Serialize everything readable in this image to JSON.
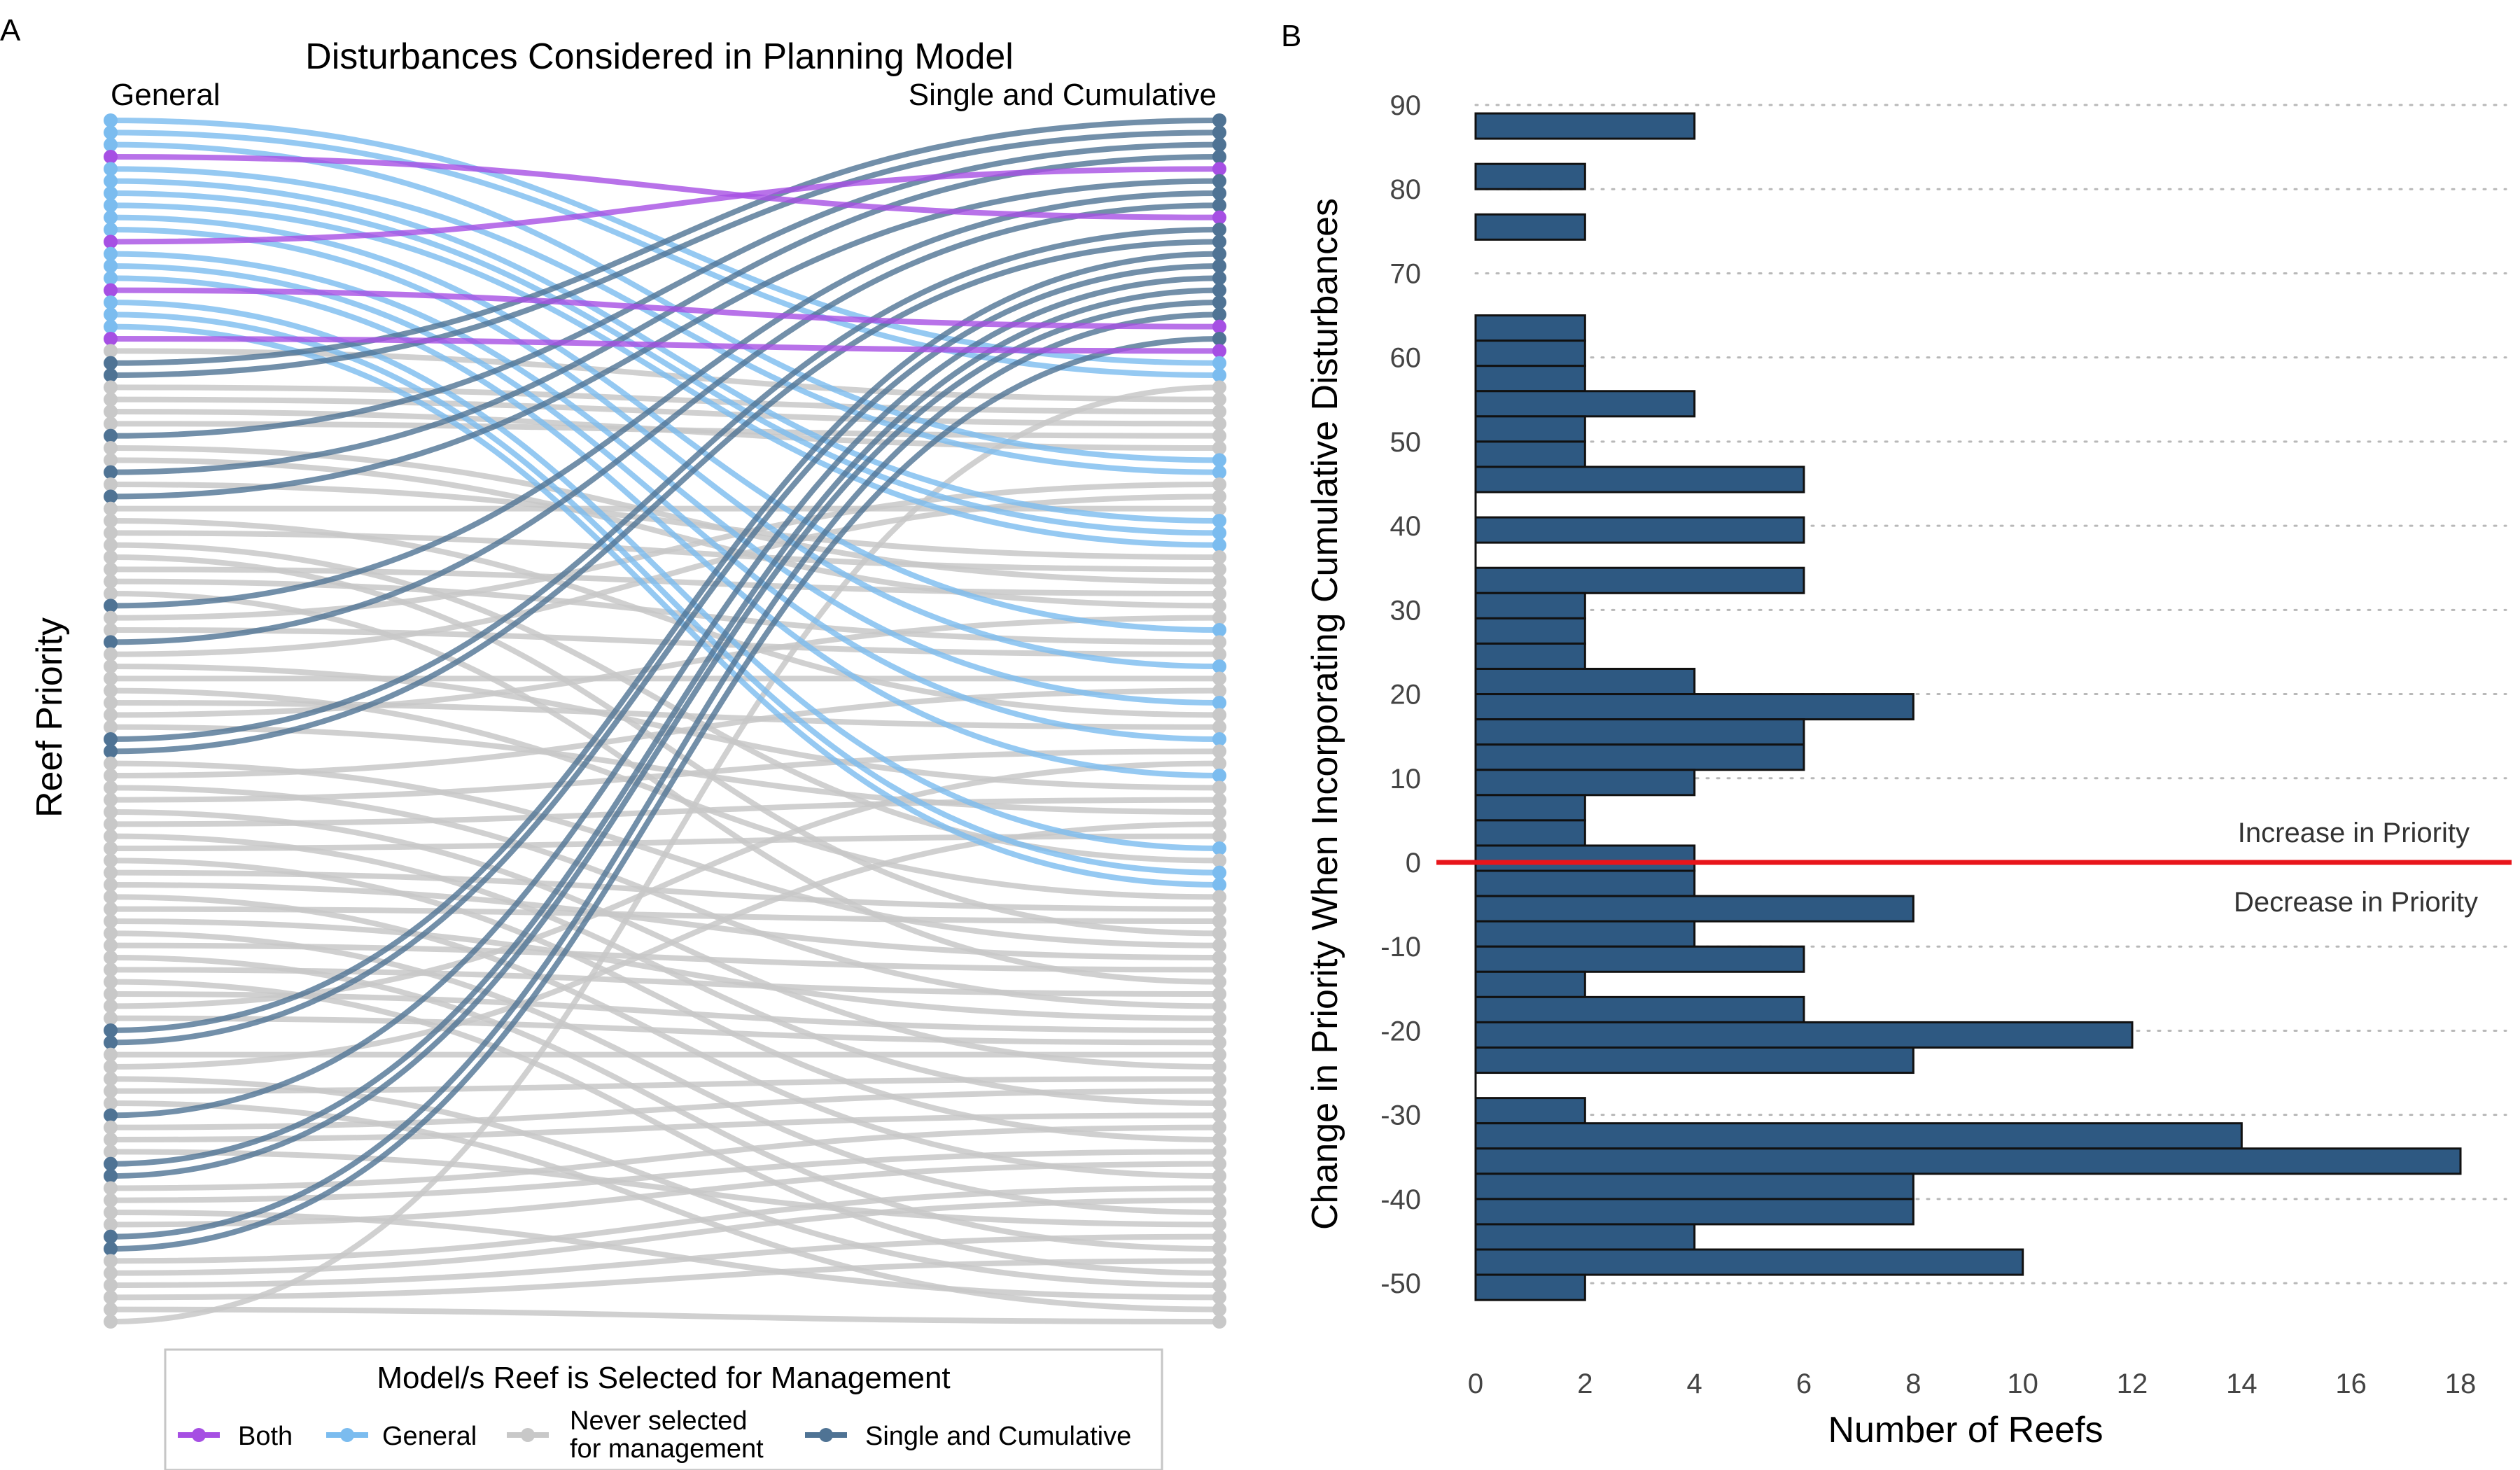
{
  "panel_a": {
    "letter": "A",
    "title": "Disturbances Considered in Planning Model",
    "left_label": "General",
    "right_label": "Single and Cumulative",
    "ylabel": "Reef Priority",
    "legend": {
      "title": "Model/s Reef is Selected for Management",
      "items": [
        {
          "label": "Both",
          "color": "#a64fe3"
        },
        {
          "label": "General",
          "color": "#7bbcef"
        },
        {
          "label": "Never selected\nfor management",
          "color": "#c8c8c8"
        },
        {
          "label": "Single and Cumulative",
          "color": "#4f7394"
        }
      ]
    }
  },
  "panel_b": {
    "letter": "B",
    "increase_label": "Increase in Priority",
    "decrease_label": "Decrease in Priority"
  },
  "chart_data": [
    {
      "type": "slope",
      "panel": "A",
      "title": "Disturbances Considered in Planning Model",
      "ylabel": "Reef Priority",
      "axes": [
        "General",
        "Single and Cumulative"
      ],
      "n_reefs": 100,
      "series": [
        {
          "name": "Both",
          "color": "#a64fe3",
          "links": [
            [
              4,
              9
            ],
            [
              11,
              5
            ],
            [
              15,
              18
            ],
            [
              19,
              20
            ]
          ]
        },
        {
          "name": "General",
          "color": "#7bbcef",
          "links": [
            [
              1,
              21
            ],
            [
              2,
              22
            ],
            [
              3,
              29
            ],
            [
              5,
              30
            ],
            [
              6,
              34
            ],
            [
              7,
              35
            ],
            [
              8,
              36
            ],
            [
              9,
              43
            ],
            [
              10,
              46
            ],
            [
              12,
              49
            ],
            [
              13,
              52
            ],
            [
              14,
              55
            ],
            [
              16,
              61
            ],
            [
              17,
              63
            ],
            [
              18,
              64
            ]
          ]
        },
        {
          "name": "Single and Cumulative",
          "color": "#4f7394",
          "links": [
            [
              21,
              1
            ],
            [
              22,
              2
            ],
            [
              27,
              3
            ],
            [
              30,
              4
            ],
            [
              32,
              6
            ],
            [
              41,
              7
            ],
            [
              44,
              8
            ],
            [
              52,
              10
            ],
            [
              53,
              11
            ],
            [
              76,
              12
            ],
            [
              77,
              13
            ],
            [
              83,
              14
            ],
            [
              87,
              15
            ],
            [
              88,
              16
            ],
            [
              93,
              17
            ],
            [
              94,
              19
            ]
          ]
        },
        {
          "name": "Never selected\nfor management",
          "color": "#c8c8c8",
          "links": [
            [
              20,
              24
            ],
            [
              23,
              25
            ],
            [
              24,
              26
            ],
            [
              25,
              28
            ],
            [
              26,
              27
            ],
            [
              28,
              39
            ],
            [
              29,
              41
            ],
            [
              31,
              37
            ],
            [
              33,
              33
            ],
            [
              34,
              50
            ],
            [
              35,
              38
            ],
            [
              36,
              62
            ],
            [
              37,
              68
            ],
            [
              38,
              40
            ],
            [
              39,
              44
            ],
            [
              40,
              72
            ],
            [
              42,
              31
            ],
            [
              43,
              45
            ],
            [
              45,
              32
            ],
            [
              46,
              56
            ],
            [
              47,
              47
            ],
            [
              48,
              65
            ],
            [
              49,
              51
            ],
            [
              50,
              42
            ],
            [
              51,
              58
            ],
            [
              54,
              69
            ],
            [
              55,
              48
            ],
            [
              56,
              74
            ],
            [
              57,
              53
            ],
            [
              58,
              79
            ],
            [
              59,
              57
            ],
            [
              60,
              82
            ],
            [
              61,
              60
            ],
            [
              62,
              85
            ],
            [
              63,
              66
            ],
            [
              64,
              70
            ],
            [
              65,
              88
            ],
            [
              66,
              67
            ],
            [
              67,
              75
            ],
            [
              68,
              91
            ],
            [
              69,
              71
            ],
            [
              70,
              94
            ],
            [
              71,
              73
            ],
            [
              72,
              96
            ],
            [
              73,
              76
            ],
            [
              74,
              54
            ],
            [
              75,
              77
            ],
            [
              78,
              78
            ],
            [
              79,
              59
            ],
            [
              80,
              97
            ],
            [
              81,
              80
            ],
            [
              82,
              99
            ],
            [
              84,
              81
            ],
            [
              85,
              83
            ],
            [
              86,
              92
            ],
            [
              89,
              84
            ],
            [
              90,
              86
            ],
            [
              91,
              98
            ],
            [
              92,
              87
            ],
            [
              95,
              89
            ],
            [
              96,
              90
            ],
            [
              97,
              93
            ],
            [
              98,
              95
            ],
            [
              99,
              100
            ],
            [
              100,
              23
            ]
          ]
        }
      ],
      "legend": {
        "title": "Model/s Reef is Selected for Management",
        "position": "bottom"
      }
    },
    {
      "type": "bar",
      "panel": "B",
      "orientation": "horizontal",
      "xlabel": "Number of Reefs",
      "ylabel": "Change in Priority When Incorporating Cumulative Disturbances",
      "xlim": [
        0,
        18.5
      ],
      "ylim": [
        -52,
        90
      ],
      "xticks": [
        0,
        2,
        4,
        6,
        8,
        10,
        12,
        14,
        16,
        18
      ],
      "yticks": [
        90,
        80,
        70,
        60,
        50,
        40,
        30,
        20,
        10,
        0,
        -10,
        -20,
        -30,
        -40,
        -50
      ],
      "grid": "horizontal-dotted",
      "bar_color": "#2e5982",
      "reference_line": {
        "y": 0,
        "color": "#e8151b"
      },
      "bars": [
        {
          "y": 87.5,
          "count": 4
        },
        {
          "y": 81.5,
          "count": 2
        },
        {
          "y": 75.5,
          "count": 2
        },
        {
          "y": 63.5,
          "count": 2
        },
        {
          "y": 60.5,
          "count": 2
        },
        {
          "y": 57.5,
          "count": 2
        },
        {
          "y": 54.5,
          "count": 4
        },
        {
          "y": 51.5,
          "count": 2
        },
        {
          "y": 48.5,
          "count": 2
        },
        {
          "y": 45.5,
          "count": 6
        },
        {
          "y": 42.5,
          "count": 0
        },
        {
          "y": 39.5,
          "count": 6
        },
        {
          "y": 36.5,
          "count": 0
        },
        {
          "y": 33.5,
          "count": 6
        },
        {
          "y": 30.5,
          "count": 2
        },
        {
          "y": 27.5,
          "count": 2
        },
        {
          "y": 24.5,
          "count": 2
        },
        {
          "y": 21.5,
          "count": 4
        },
        {
          "y": 18.5,
          "count": 8
        },
        {
          "y": 15.5,
          "count": 6
        },
        {
          "y": 12.5,
          "count": 6
        },
        {
          "y": 9.5,
          "count": 4
        },
        {
          "y": 6.5,
          "count": 2
        },
        {
          "y": 3.5,
          "count": 2
        },
        {
          "y": 0.5,
          "count": 4
        },
        {
          "y": -2.5,
          "count": 4
        },
        {
          "y": -5.5,
          "count": 8
        },
        {
          "y": -8.5,
          "count": 4
        },
        {
          "y": -11.5,
          "count": 6
        },
        {
          "y": -14.5,
          "count": 2
        },
        {
          "y": -17.5,
          "count": 6
        },
        {
          "y": -20.5,
          "count": 12
        },
        {
          "y": -23.5,
          "count": 8
        },
        {
          "y": -26.5,
          "count": 0
        },
        {
          "y": -29.5,
          "count": 2
        },
        {
          "y": -32.5,
          "count": 14
        },
        {
          "y": -35.5,
          "count": 18
        },
        {
          "y": -38.5,
          "count": 8
        },
        {
          "y": -41.5,
          "count": 8
        },
        {
          "y": -44.5,
          "count": 4
        },
        {
          "y": -47.5,
          "count": 10
        },
        {
          "y": -50.5,
          "count": 2
        }
      ],
      "annotations": [
        "Increase in Priority",
        "Decrease in Priority"
      ]
    }
  ]
}
